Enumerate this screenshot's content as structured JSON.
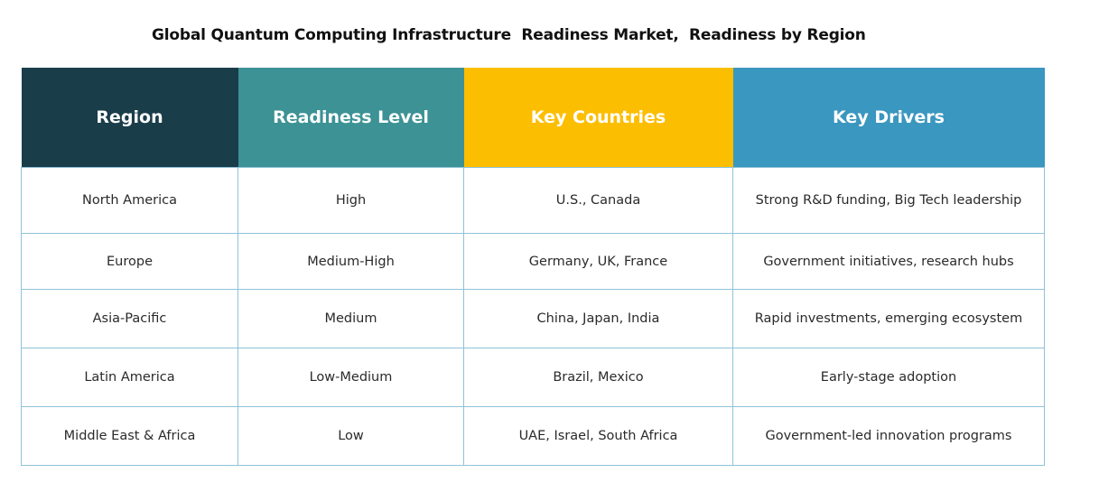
{
  "title": "Global Quantum Computing Infrastructure  Readiness Market,  Readiness by Region",
  "colors": {
    "header_region": "#1a3d4a",
    "header_readiness": "#3c9295",
    "header_countries": "#fcbe01",
    "header_drivers": "#3a97bf",
    "grid_line": "#8fc3d8"
  },
  "table": {
    "headers": [
      "Region",
      "Readiness Level",
      "Key Countries",
      "Key Drivers"
    ],
    "rows": [
      [
        "North America",
        "High",
        "U.S., Canada",
        "Strong R&D funding, Big Tech leadership"
      ],
      [
        "Europe",
        "Medium-High",
        "Germany, UK, France",
        "Government initiatives, research hubs"
      ],
      [
        "Asia-Pacific",
        "Medium",
        "China, Japan, India",
        "Rapid investments, emerging ecosystem"
      ],
      [
        "Latin America",
        "Low-Medium",
        "Brazil, Mexico",
        "Early-stage adoption"
      ],
      [
        "Middle East & Africa",
        "Low",
        "UAE, Israel, South Africa",
        "Government-led innovation programs"
      ]
    ]
  }
}
